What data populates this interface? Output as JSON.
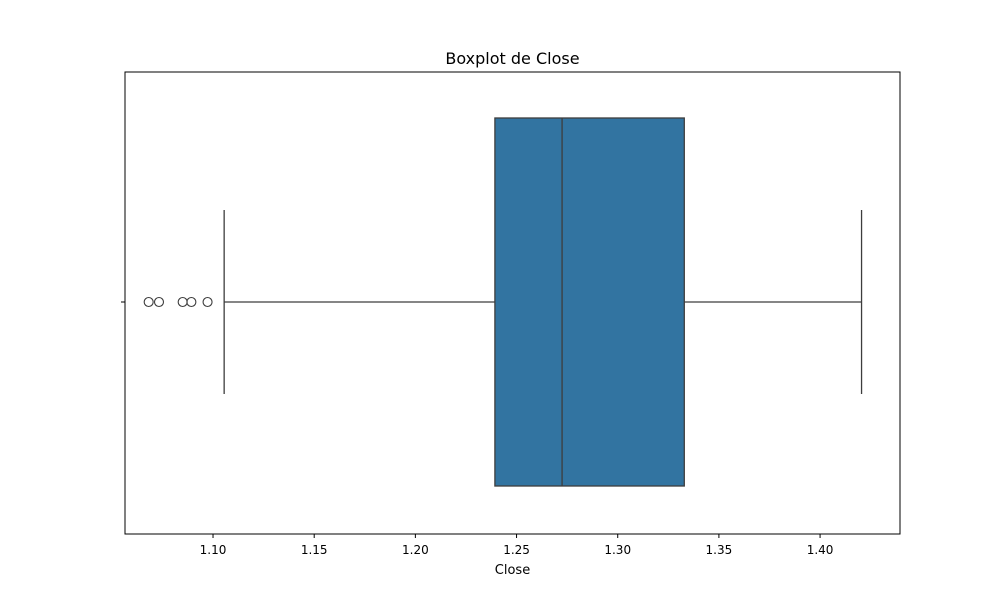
{
  "chart_data": {
    "type": "boxplot",
    "title": "Boxplot de Close",
    "xlabel": "Close",
    "ylabel": "",
    "xlim": [
      1.0565,
      1.4395
    ],
    "xticks": [
      1.1,
      1.15,
      1.2,
      1.25,
      1.3,
      1.35,
      1.4
    ],
    "xtick_labels": [
      "1.10",
      "1.15",
      "1.20",
      "1.25",
      "1.30",
      "1.35",
      "1.40"
    ],
    "grid": false,
    "box": {
      "whisker_low": 1.1055,
      "q1": 1.2393,
      "median": 1.2725,
      "q3": 1.3329,
      "whisker_high": 1.4205
    },
    "outliers": [
      1.0682,
      1.0733,
      1.085,
      1.0893,
      1.0973
    ],
    "colors": {
      "box_fill": "#3274a1",
      "line": "#3d3d3d",
      "frame": "#000000"
    }
  }
}
